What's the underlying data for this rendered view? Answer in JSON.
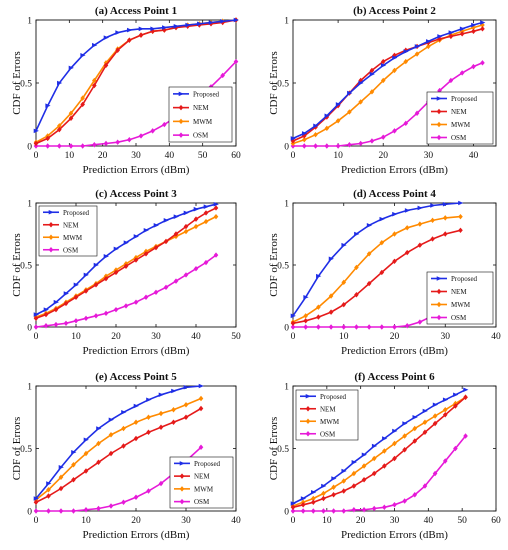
{
  "legend_labels": [
    "Proposed",
    "NEM",
    "MWM",
    "OSM"
  ],
  "colors": {
    "Proposed": "#1f2ee6",
    "NEM": "#e51a1a",
    "MWM": "#ff8a00",
    "OSM": "#e61ad8"
  },
  "chart_data": [
    {
      "type": "line",
      "title": "(a) Access Point 1",
      "xlabel": "Prediction Errors (dBm)",
      "ylabel": "CDF of Errors",
      "xlim": [
        0,
        60
      ],
      "ylim": [
        0,
        1
      ],
      "xticks": [
        0,
        10,
        20,
        30,
        40,
        50,
        60
      ],
      "yticks": [
        0,
        0.5,
        1
      ],
      "legend_position": "bottom-right",
      "series": [
        {
          "name": "Proposed",
          "x": [
            0,
            3.5,
            7,
            10.5,
            14,
            17.5,
            21,
            24.5,
            28,
            31.5,
            35,
            38.5,
            42,
            45.5,
            49,
            52.5,
            56,
            60
          ],
          "y": [
            0.12,
            0.32,
            0.5,
            0.62,
            0.72,
            0.8,
            0.86,
            0.9,
            0.92,
            0.93,
            0.93,
            0.94,
            0.95,
            0.96,
            0.97,
            0.98,
            0.99,
            1.0
          ]
        },
        {
          "name": "NEM",
          "x": [
            0,
            3.5,
            7,
            10.5,
            14,
            17.5,
            21,
            24.5,
            28,
            31.5,
            35,
            38.5,
            42,
            45.5,
            49,
            52.5,
            56,
            60
          ],
          "y": [
            0.02,
            0.06,
            0.13,
            0.22,
            0.33,
            0.48,
            0.64,
            0.76,
            0.84,
            0.88,
            0.91,
            0.92,
            0.94,
            0.95,
            0.96,
            0.97,
            0.98,
            1.0
          ]
        },
        {
          "name": "MWM",
          "x": [
            0,
            3.5,
            7,
            10.5,
            14,
            17.5,
            21,
            24.5,
            28,
            31.5,
            35,
            38.5,
            42,
            45.5,
            49,
            52.5,
            56,
            60
          ],
          "y": [
            0.03,
            0.08,
            0.16,
            0.26,
            0.38,
            0.52,
            0.66,
            0.77,
            0.84,
            0.88,
            0.91,
            0.92,
            0.94,
            0.96,
            0.97,
            0.98,
            0.99,
            1.0
          ]
        },
        {
          "name": "OSM",
          "x": [
            0,
            3.5,
            7,
            10.5,
            14,
            17.5,
            21,
            24.5,
            28,
            31.5,
            35,
            38.5,
            42,
            45.5,
            49,
            52.5,
            56,
            60
          ],
          "y": [
            0.0,
            0.0,
            0.0,
            0.0,
            0.0,
            0.01,
            0.02,
            0.03,
            0.05,
            0.08,
            0.12,
            0.17,
            0.23,
            0.3,
            0.38,
            0.47,
            0.56,
            0.67
          ]
        }
      ]
    },
    {
      "type": "line",
      "title": "(b) Access Point 2",
      "xlabel": "Prediction Errors (dBm)",
      "ylabel": "CDF of Errors",
      "xlim": [
        0,
        45
      ],
      "ylim": [
        0,
        1
      ],
      "xticks": [
        0,
        10,
        20,
        30,
        40
      ],
      "yticks": [
        0,
        0.5,
        1
      ],
      "legend_position": "right",
      "series": [
        {
          "name": "Proposed",
          "x": [
            0,
            2.5,
            5,
            7.5,
            10,
            12.5,
            15,
            17.5,
            20,
            22.5,
            25,
            27.5,
            30,
            32.5,
            35,
            37.5,
            40,
            42
          ],
          "y": [
            0.06,
            0.1,
            0.16,
            0.24,
            0.33,
            0.42,
            0.5,
            0.57,
            0.64,
            0.7,
            0.75,
            0.79,
            0.83,
            0.87,
            0.9,
            0.93,
            0.96,
            0.98
          ]
        },
        {
          "name": "NEM",
          "x": [
            0,
            2.5,
            5,
            7.5,
            10,
            12.5,
            15,
            17.5,
            20,
            22.5,
            25,
            27.5,
            30,
            32.5,
            35,
            37.5,
            40,
            42
          ],
          "y": [
            0.04,
            0.08,
            0.15,
            0.23,
            0.32,
            0.42,
            0.52,
            0.6,
            0.67,
            0.72,
            0.76,
            0.79,
            0.82,
            0.85,
            0.87,
            0.89,
            0.91,
            0.93
          ]
        },
        {
          "name": "MWM",
          "x": [
            0,
            2.5,
            5,
            7.5,
            10,
            12.5,
            15,
            17.5,
            20,
            22.5,
            25,
            27.5,
            30,
            32.5,
            35,
            37.5,
            40,
            42
          ],
          "y": [
            0.02,
            0.05,
            0.09,
            0.14,
            0.2,
            0.27,
            0.35,
            0.43,
            0.52,
            0.6,
            0.67,
            0.73,
            0.79,
            0.84,
            0.88,
            0.91,
            0.94,
            0.96
          ]
        },
        {
          "name": "OSM",
          "x": [
            0,
            2.5,
            5,
            7.5,
            10,
            12.5,
            15,
            17.5,
            20,
            22.5,
            25,
            27.5,
            30,
            32.5,
            35,
            37.5,
            40,
            42
          ],
          "y": [
            0.0,
            0.0,
            0.0,
            0.0,
            0.0,
            0.01,
            0.02,
            0.04,
            0.07,
            0.12,
            0.18,
            0.26,
            0.35,
            0.44,
            0.52,
            0.58,
            0.63,
            0.66
          ]
        }
      ]
    },
    {
      "type": "line",
      "title": "(c) Access Point 3",
      "xlabel": "Prediction Errors (dBm)",
      "ylabel": "CDF of Errors",
      "xlim": [
        0,
        50
      ],
      "ylim": [
        0,
        1
      ],
      "xticks": [
        0,
        10,
        20,
        30,
        40,
        50
      ],
      "yticks": [
        0,
        0.5,
        1
      ],
      "legend_position": "top-left",
      "series": [
        {
          "name": "Proposed",
          "x": [
            0,
            2.5,
            5,
            7.5,
            10,
            12.5,
            15,
            17.5,
            20,
            22.5,
            25,
            27.5,
            30,
            32.5,
            35,
            37.5,
            40,
            42.5,
            45
          ],
          "y": [
            0.1,
            0.14,
            0.2,
            0.27,
            0.34,
            0.42,
            0.5,
            0.57,
            0.63,
            0.68,
            0.73,
            0.78,
            0.82,
            0.86,
            0.89,
            0.92,
            0.95,
            0.97,
            0.99
          ]
        },
        {
          "name": "NEM",
          "x": [
            0,
            2.5,
            5,
            7.5,
            10,
            12.5,
            15,
            17.5,
            20,
            22.5,
            25,
            27.5,
            30,
            32.5,
            35,
            37.5,
            40,
            42.5,
            45
          ],
          "y": [
            0.07,
            0.1,
            0.14,
            0.19,
            0.24,
            0.29,
            0.34,
            0.39,
            0.44,
            0.49,
            0.54,
            0.59,
            0.64,
            0.69,
            0.75,
            0.81,
            0.87,
            0.92,
            0.96
          ]
        },
        {
          "name": "MWM",
          "x": [
            0,
            2.5,
            5,
            7.5,
            10,
            12.5,
            15,
            17.5,
            20,
            22.5,
            25,
            27.5,
            30,
            32.5,
            35,
            37.5,
            40,
            42.5,
            45
          ],
          "y": [
            0.08,
            0.11,
            0.15,
            0.2,
            0.25,
            0.3,
            0.35,
            0.41,
            0.46,
            0.51,
            0.56,
            0.61,
            0.65,
            0.69,
            0.73,
            0.77,
            0.81,
            0.85,
            0.89
          ]
        },
        {
          "name": "OSM",
          "x": [
            0,
            2.5,
            5,
            7.5,
            10,
            12.5,
            15,
            17.5,
            20,
            22.5,
            25,
            27.5,
            30,
            32.5,
            35,
            37.5,
            40,
            42.5,
            45
          ],
          "y": [
            0.0,
            0.01,
            0.02,
            0.03,
            0.05,
            0.07,
            0.09,
            0.11,
            0.14,
            0.17,
            0.2,
            0.24,
            0.28,
            0.32,
            0.37,
            0.42,
            0.47,
            0.52,
            0.58
          ]
        }
      ]
    },
    {
      "type": "line",
      "title": "(d) Access Point 4",
      "xlabel": "Prediction Errors (dBm)",
      "ylabel": "CDF of Errors",
      "xlim": [
        0,
        40
      ],
      "ylim": [
        0,
        1
      ],
      "xticks": [
        0,
        10,
        20,
        30,
        40
      ],
      "yticks": [
        0,
        0.5,
        1
      ],
      "legend_position": "bottom-right",
      "series": [
        {
          "name": "Proposed",
          "x": [
            0,
            2.5,
            5,
            7.5,
            10,
            12.5,
            15,
            17.5,
            20,
            22.5,
            25,
            27.5,
            30,
            33
          ],
          "y": [
            0.09,
            0.24,
            0.41,
            0.55,
            0.66,
            0.75,
            0.82,
            0.87,
            0.91,
            0.94,
            0.96,
            0.98,
            0.99,
            1.0
          ]
        },
        {
          "name": "NEM",
          "x": [
            0,
            2.5,
            5,
            7.5,
            10,
            12.5,
            15,
            17.5,
            20,
            22.5,
            25,
            27.5,
            30,
            33
          ],
          "y": [
            0.03,
            0.05,
            0.08,
            0.12,
            0.18,
            0.26,
            0.35,
            0.44,
            0.53,
            0.6,
            0.66,
            0.71,
            0.75,
            0.78
          ]
        },
        {
          "name": "MWM",
          "x": [
            0,
            2.5,
            5,
            7.5,
            10,
            12.5,
            15,
            17.5,
            20,
            22.5,
            25,
            27.5,
            30,
            33
          ],
          "y": [
            0.04,
            0.09,
            0.16,
            0.25,
            0.36,
            0.48,
            0.59,
            0.68,
            0.75,
            0.8,
            0.83,
            0.86,
            0.88,
            0.89
          ]
        },
        {
          "name": "OSM",
          "x": [
            0,
            2.5,
            5,
            7.5,
            10,
            12.5,
            15,
            17.5,
            20,
            22.5,
            25,
            27.5,
            30,
            33
          ],
          "y": [
            0.0,
            0.0,
            0.0,
            0.0,
            0.0,
            0.0,
            0.0,
            0.0,
            0.0,
            0.01,
            0.04,
            0.09,
            0.17,
            0.26
          ]
        }
      ]
    },
    {
      "type": "line",
      "title": "(e) Access Point 5",
      "xlabel": "Prediction Errors (dBm)",
      "ylabel": "CDF of Errors",
      "xlim": [
        0,
        40
      ],
      "ylim": [
        0,
        1
      ],
      "xticks": [
        0,
        10,
        20,
        30,
        40
      ],
      "yticks": [
        0,
        0.5,
        1
      ],
      "legend_position": "bottom-right",
      "series": [
        {
          "name": "Proposed",
          "x": [
            0,
            2.5,
            5,
            7.5,
            10,
            12.5,
            15,
            17.5,
            20,
            22.5,
            25,
            27.5,
            30,
            33
          ],
          "y": [
            0.1,
            0.22,
            0.35,
            0.47,
            0.57,
            0.66,
            0.73,
            0.79,
            0.84,
            0.89,
            0.93,
            0.96,
            0.99,
            1.0
          ]
        },
        {
          "name": "NEM",
          "x": [
            0,
            2.5,
            5,
            7.5,
            10,
            12.5,
            15,
            17.5,
            20,
            22.5,
            25,
            27.5,
            30,
            33
          ],
          "y": [
            0.07,
            0.12,
            0.18,
            0.25,
            0.32,
            0.39,
            0.46,
            0.52,
            0.58,
            0.63,
            0.67,
            0.71,
            0.75,
            0.82
          ]
        },
        {
          "name": "MWM",
          "x": [
            0,
            2.5,
            5,
            7.5,
            10,
            12.5,
            15,
            17.5,
            20,
            22.5,
            25,
            27.5,
            30,
            33
          ],
          "y": [
            0.09,
            0.17,
            0.27,
            0.37,
            0.46,
            0.54,
            0.61,
            0.66,
            0.71,
            0.75,
            0.78,
            0.81,
            0.85,
            0.9
          ]
        },
        {
          "name": "OSM",
          "x": [
            0,
            2.5,
            5,
            7.5,
            10,
            12.5,
            15,
            17.5,
            20,
            22.5,
            25,
            27.5,
            30,
            33
          ],
          "y": [
            0.0,
            0.0,
            0.0,
            0.0,
            0.01,
            0.02,
            0.04,
            0.07,
            0.11,
            0.16,
            0.22,
            0.3,
            0.4,
            0.51
          ]
        }
      ]
    },
    {
      "type": "line",
      "title": "(f) Access Point 6",
      "xlabel": "Prediction Errors (dBm)",
      "ylabel": "CDF of Errors",
      "xlim": [
        0,
        60
      ],
      "ylim": [
        0,
        1
      ],
      "xticks": [
        0,
        10,
        20,
        30,
        40,
        50,
        60
      ],
      "yticks": [
        0,
        0.5,
        1
      ],
      "legend_position": "top-left",
      "series": [
        {
          "name": "Proposed",
          "x": [
            0,
            3,
            6,
            9,
            12,
            15,
            18,
            21,
            24,
            27,
            30,
            33,
            36,
            39,
            42,
            45,
            48,
            51
          ],
          "y": [
            0.06,
            0.1,
            0.15,
            0.2,
            0.26,
            0.32,
            0.39,
            0.45,
            0.52,
            0.58,
            0.64,
            0.7,
            0.75,
            0.8,
            0.85,
            0.89,
            0.93,
            0.97
          ]
        },
        {
          "name": "NEM",
          "x": [
            0,
            3,
            6,
            9,
            12,
            15,
            18,
            21,
            24,
            27,
            30,
            33,
            36,
            39,
            42,
            45,
            48,
            51
          ],
          "y": [
            0.03,
            0.05,
            0.07,
            0.1,
            0.13,
            0.16,
            0.2,
            0.25,
            0.3,
            0.36,
            0.42,
            0.49,
            0.56,
            0.63,
            0.7,
            0.77,
            0.84,
            0.91
          ]
        },
        {
          "name": "MWM",
          "x": [
            0,
            3,
            6,
            9,
            12,
            15,
            18,
            21,
            24,
            27,
            30,
            33,
            36,
            39,
            42,
            45,
            48,
            51
          ],
          "y": [
            0.04,
            0.07,
            0.1,
            0.14,
            0.19,
            0.24,
            0.3,
            0.36,
            0.42,
            0.48,
            0.54,
            0.6,
            0.66,
            0.71,
            0.76,
            0.81,
            0.86,
            0.91
          ]
        },
        {
          "name": "OSM",
          "x": [
            0,
            3,
            6,
            9,
            12,
            15,
            18,
            21,
            24,
            27,
            30,
            33,
            36,
            39,
            42,
            45,
            48,
            51
          ],
          "y": [
            0.0,
            0.0,
            0.0,
            0.0,
            0.0,
            0.0,
            0.01,
            0.01,
            0.02,
            0.03,
            0.05,
            0.08,
            0.13,
            0.2,
            0.3,
            0.4,
            0.5,
            0.6
          ]
        }
      ]
    }
  ]
}
